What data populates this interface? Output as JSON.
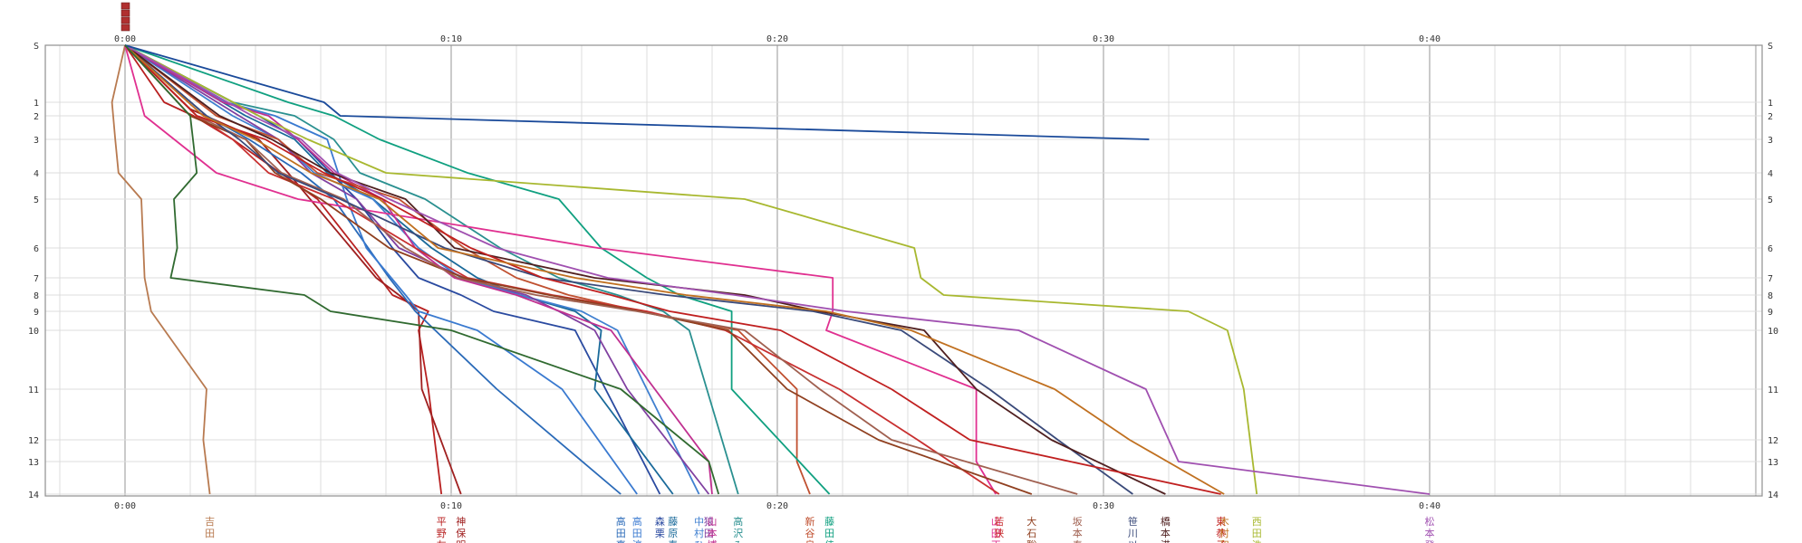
{
  "chart_data": {
    "type": "line",
    "x_unit": "minutes",
    "x_ticks": [
      "0:00",
      "0:10",
      "0:20",
      "0:30",
      "0:40"
    ],
    "xlim": [
      0,
      50
    ],
    "y_ticks": [
      "S",
      "1",
      "2",
      "3",
      "4",
      "5",
      "6",
      "7",
      "8",
      "9",
      "10",
      "11",
      "12",
      "13",
      "14"
    ],
    "ylim": [
      0,
      14
    ],
    "grid": true,
    "series": [
      {
        "name": "吉田",
        "color": "#b87a50",
        "finish": 2.6,
        "points": [
          [
            0,
            0
          ],
          [
            -0.4,
            1
          ],
          [
            -0.3,
            3
          ],
          [
            -0.2,
            4
          ],
          [
            0.5,
            5
          ],
          [
            0.6,
            7
          ],
          [
            0.8,
            9
          ],
          [
            2.5,
            11
          ],
          [
            2.4,
            12
          ],
          [
            2.6,
            14
          ]
        ]
      },
      {
        "name": "平野友",
        "color": "#b82020",
        "finish": 9.7,
        "points": [
          [
            0,
            0
          ],
          [
            1.2,
            1
          ],
          [
            2.1,
            2
          ],
          [
            3.3,
            3
          ],
          [
            5.9,
            5
          ],
          [
            7.8,
            7
          ],
          [
            8.2,
            8
          ],
          [
            9.3,
            9
          ],
          [
            9.0,
            10
          ],
          [
            9.3,
            11
          ],
          [
            9.7,
            14
          ]
        ]
      },
      {
        "name": "神保明",
        "color": "#a02020",
        "finish": 10.3,
        "points": [
          [
            0,
            0
          ],
          [
            2.0,
            1.5
          ],
          [
            4.1,
            3
          ],
          [
            5.0,
            4
          ],
          [
            7.7,
            7
          ],
          [
            8.4,
            8
          ],
          [
            9.0,
            9
          ],
          [
            9.1,
            11
          ],
          [
            10.3,
            14
          ]
        ]
      },
      {
        "name": "高田真",
        "color": "#2a6ab8",
        "finish": 15.2,
        "points": [
          [
            0,
            0
          ],
          [
            2.5,
            2
          ],
          [
            3.8,
            3
          ],
          [
            5.4,
            4
          ],
          [
            6.4,
            5
          ],
          [
            8.1,
            7
          ],
          [
            8.9,
            9
          ],
          [
            11.4,
            11
          ],
          [
            15.2,
            14
          ]
        ]
      },
      {
        "name": "高田淳",
        "color": "#3a7ad0",
        "finish": 15.7,
        "points": [
          [
            0,
            0
          ],
          [
            3.1,
            1
          ],
          [
            4.6,
            2
          ],
          [
            6.2,
            3
          ],
          [
            6.8,
            5
          ],
          [
            7.4,
            6
          ],
          [
            8.6,
            8
          ],
          [
            9.0,
            9
          ],
          [
            10.8,
            10
          ],
          [
            13.4,
            11
          ],
          [
            15.7,
            14
          ]
        ]
      },
      {
        "name": "森栗",
        "color": "#2a4aa0",
        "finish": 16.4,
        "points": [
          [
            0,
            0
          ],
          [
            4.1,
            2
          ],
          [
            5.3,
            3
          ],
          [
            6.3,
            4
          ],
          [
            7.1,
            5
          ],
          [
            8.2,
            6
          ],
          [
            9.0,
            7
          ],
          [
            10.3,
            8
          ],
          [
            11.3,
            9
          ],
          [
            13.8,
            10
          ],
          [
            16.4,
            14
          ]
        ]
      },
      {
        "name": "藤原寿",
        "color": "#1a6a9a",
        "finish": 16.8,
        "points": [
          [
            0,
            0
          ],
          [
            3.7,
            2
          ],
          [
            5.2,
            3
          ],
          [
            6.2,
            4
          ],
          [
            7.6,
            5
          ],
          [
            9.4,
            6
          ],
          [
            10.8,
            7
          ],
          [
            12.1,
            8
          ],
          [
            13.8,
            9
          ],
          [
            14.6,
            10
          ],
          [
            14.4,
            11
          ],
          [
            16.8,
            14
          ]
        ]
      },
      {
        "name": "中村ひ",
        "color": "#4080d0",
        "finish": 17.6,
        "points": [
          [
            0,
            0
          ],
          [
            3.3,
            2
          ],
          [
            4.7,
            3
          ],
          [
            5.8,
            4
          ],
          [
            7.6,
            5
          ],
          [
            9.0,
            6
          ],
          [
            10.3,
            7
          ],
          [
            12.1,
            8
          ],
          [
            14.0,
            9
          ],
          [
            15.1,
            10
          ],
          [
            17.6,
            14
          ]
        ]
      },
      {
        "name": "猿田",
        "color": "#8040a0",
        "finish": 17.9,
        "points": [
          [
            0,
            0
          ],
          [
            3.5,
            2
          ],
          [
            4.7,
            3
          ],
          [
            5.7,
            4
          ],
          [
            7.1,
            5
          ],
          [
            8.4,
            6
          ],
          [
            10.4,
            7
          ],
          [
            12.3,
            8
          ],
          [
            13.3,
            9
          ],
          [
            14.4,
            10
          ],
          [
            15.4,
            11
          ],
          [
            17.9,
            14
          ]
        ]
      },
      {
        "name": "山本博",
        "color": "#c03090",
        "finish": 18.0,
        "points": [
          [
            0,
            0
          ],
          [
            3.0,
            1
          ],
          [
            4.4,
            2
          ],
          [
            5.3,
            3
          ],
          [
            6.4,
            4
          ],
          [
            7.9,
            5
          ],
          [
            8.9,
            6
          ],
          [
            10.1,
            7
          ],
          [
            12.0,
            8
          ],
          [
            14.9,
            10
          ],
          [
            17.9,
            13
          ],
          [
            18.0,
            14
          ]
        ]
      },
      {
        "name": "高沢み",
        "color": "#2a9090",
        "finish": 18.8,
        "points": [
          [
            0,
            0
          ],
          [
            3.3,
            1
          ],
          [
            5.2,
            2
          ],
          [
            6.4,
            3
          ],
          [
            7.2,
            4
          ],
          [
            9.2,
            5
          ],
          [
            11.5,
            6
          ],
          [
            13.3,
            7
          ],
          [
            15.1,
            8
          ],
          [
            16.5,
            9
          ],
          [
            17.3,
            10
          ],
          [
            18.8,
            14
          ]
        ]
      },
      {
        "name": "新谷良",
        "color": "#c05030",
        "finish": 21.0,
        "points": [
          [
            0,
            0
          ],
          [
            2.8,
            2
          ],
          [
            4.7,
            3
          ],
          [
            5.9,
            4
          ],
          [
            8.4,
            5
          ],
          [
            10.4,
            6
          ],
          [
            12.0,
            7
          ],
          [
            13.6,
            8
          ],
          [
            15.8,
            9
          ],
          [
            18.8,
            10
          ],
          [
            20.6,
            11
          ],
          [
            20.6,
            13
          ],
          [
            21.0,
            14
          ]
        ]
      },
      {
        "name": "藤田佳",
        "color": "#10a080",
        "finish": 21.6,
        "points": [
          [
            0,
            0
          ],
          [
            5.0,
            1
          ],
          [
            6.4,
            2
          ],
          [
            7.8,
            3
          ],
          [
            10.5,
            4
          ],
          [
            13.3,
            5
          ],
          [
            14.6,
            6
          ],
          [
            16.0,
            7
          ],
          [
            17.0,
            8
          ],
          [
            18.6,
            9
          ],
          [
            18.6,
            11
          ],
          [
            21.6,
            14
          ]
        ]
      },
      {
        "name": "山田正",
        "color": "#e03090",
        "finish": 26.7,
        "points": [
          [
            0,
            0
          ],
          [
            0.6,
            2
          ],
          [
            2.8,
            4
          ],
          [
            5.3,
            5
          ],
          [
            14.5,
            6
          ],
          [
            21.7,
            7
          ],
          [
            21.7,
            9
          ],
          [
            21.5,
            10
          ],
          [
            26.1,
            11
          ],
          [
            26.1,
            13
          ],
          [
            26.7,
            14
          ]
        ]
      },
      {
        "name": "若狭",
        "color": "#c83030",
        "finish": 26.8,
        "points": [
          [
            0,
            0
          ],
          [
            2.2,
            2
          ],
          [
            3.3,
            3
          ],
          [
            4.4,
            4
          ],
          [
            6.4,
            5
          ],
          [
            8.9,
            6
          ],
          [
            10.5,
            7
          ],
          [
            13.1,
            8
          ],
          [
            16.0,
            9
          ],
          [
            18.4,
            10
          ],
          [
            21.9,
            11
          ],
          [
            24.3,
            12
          ],
          [
            26.8,
            14
          ]
        ]
      },
      {
        "name": "大石聡",
        "color": "#904020",
        "finish": 27.8,
        "points": [
          [
            0,
            0
          ],
          [
            2.0,
            2
          ],
          [
            3.7,
            3
          ],
          [
            4.6,
            4
          ],
          [
            6.0,
            5
          ],
          [
            8.1,
            6
          ],
          [
            10.4,
            7
          ],
          [
            13.0,
            8
          ],
          [
            15.8,
            9
          ],
          [
            18.5,
            10
          ],
          [
            20.3,
            11
          ],
          [
            23.1,
            12
          ],
          [
            27.8,
            14
          ]
        ]
      },
      {
        "name": "坂本泰",
        "color": "#a06050",
        "finish": 29.2,
        "points": [
          [
            0,
            0
          ],
          [
            2.2,
            2
          ],
          [
            3.7,
            3
          ],
          [
            4.8,
            4
          ],
          [
            6.7,
            5
          ],
          [
            8.6,
            6
          ],
          [
            10.2,
            7
          ],
          [
            12.6,
            8
          ],
          [
            15.7,
            9
          ],
          [
            19.0,
            10
          ],
          [
            21.3,
            11
          ],
          [
            23.5,
            12
          ],
          [
            29.2,
            14
          ]
        ]
      },
      {
        "name": "笹川以",
        "color": "#3a4a7a",
        "finish": 30.9,
        "points": [
          [
            0,
            0
          ],
          [
            2.5,
            2
          ],
          [
            3.5,
            3
          ],
          [
            4.7,
            4
          ],
          [
            6.6,
            5
          ],
          [
            9.8,
            6
          ],
          [
            12.8,
            7
          ],
          [
            16.6,
            8
          ],
          [
            21.1,
            9
          ],
          [
            23.8,
            10
          ],
          [
            26.5,
            11
          ],
          [
            28.6,
            12
          ],
          [
            30.9,
            14
          ]
        ]
      },
      {
        "name": "橋本満",
        "color": "#502020",
        "finish": 31.9,
        "points": [
          [
            0,
            0
          ],
          [
            2.9,
            2
          ],
          [
            4.5,
            3
          ],
          [
            6.3,
            4
          ],
          [
            8.6,
            5
          ],
          [
            10.1,
            6
          ],
          [
            14.4,
            7
          ],
          [
            19.0,
            8
          ],
          [
            21.3,
            9
          ],
          [
            24.5,
            10
          ],
          [
            26.1,
            11
          ],
          [
            28.4,
            12
          ],
          [
            31.9,
            14
          ]
        ]
      },
      {
        "name": "東恭子",
        "color": "#c02020",
        "finish": 33.6,
        "points": [
          [
            0,
            0
          ],
          [
            2.2,
            2
          ],
          [
            4.3,
            3
          ],
          [
            6.1,
            4
          ],
          [
            7.9,
            5
          ],
          [
            10.6,
            6
          ],
          [
            12.8,
            7
          ],
          [
            14.9,
            8
          ],
          [
            16.7,
            9
          ],
          [
            20.1,
            10
          ],
          [
            23.5,
            11
          ],
          [
            25.9,
            12
          ],
          [
            33.6,
            14
          ]
        ]
      },
      {
        "name": "木村和",
        "color": "#c07020",
        "finish": 33.7,
        "points": [
          [
            0,
            0
          ],
          [
            2.4,
            2
          ],
          [
            4.0,
            3
          ],
          [
            5.7,
            4
          ],
          [
            7.8,
            5
          ],
          [
            9.6,
            6
          ],
          [
            13.8,
            7
          ],
          [
            17.2,
            8
          ],
          [
            21.5,
            9
          ],
          [
            24.1,
            10
          ],
          [
            28.5,
            11
          ],
          [
            30.8,
            12
          ],
          [
            33.7,
            14
          ]
        ]
      },
      {
        "name": "西田浩",
        "color": "#a8b830",
        "finish": 34.7,
        "points": [
          [
            0,
            0
          ],
          [
            4.1,
            2
          ],
          [
            5.6,
            3
          ],
          [
            8.0,
            4
          ],
          [
            19.0,
            5
          ],
          [
            24.2,
            6
          ],
          [
            24.4,
            7
          ],
          [
            25.1,
            8
          ],
          [
            32.6,
            9
          ],
          [
            33.8,
            10
          ],
          [
            34.3,
            11
          ],
          [
            34.7,
            14
          ]
        ]
      },
      {
        "name": "松本登",
        "color": "#a050b0",
        "finish": 40.0,
        "points": [
          [
            0,
            0
          ],
          [
            3.9,
            2
          ],
          [
            5.4,
            3
          ],
          [
            6.5,
            4
          ],
          [
            8.1,
            5
          ],
          [
            11.4,
            6
          ],
          [
            14.8,
            7
          ],
          [
            18.7,
            8
          ],
          [
            22.1,
            9
          ],
          [
            27.4,
            10
          ],
          [
            31.3,
            11
          ],
          [
            32.0,
            12
          ],
          [
            32.3,
            13
          ],
          [
            40.0,
            14
          ]
        ]
      },
      {
        "name": "",
        "color": "#1a4a9a",
        "finish": null,
        "points": [
          [
            0,
            0
          ],
          [
            6.1,
            1
          ],
          [
            6.6,
            2
          ],
          [
            31.4,
            3
          ]
        ]
      },
      {
        "name": "",
        "color": "#306a30",
        "finish": null,
        "points": [
          [
            0,
            0
          ],
          [
            2.0,
            2
          ],
          [
            2.2,
            4
          ],
          [
            1.5,
            5
          ],
          [
            1.6,
            6
          ],
          [
            1.4,
            7
          ],
          [
            5.5,
            8
          ],
          [
            6.3,
            9
          ],
          [
            10.0,
            10
          ],
          [
            15.2,
            11
          ],
          [
            17.9,
            13
          ],
          [
            18.2,
            14
          ]
        ]
      }
    ]
  }
}
